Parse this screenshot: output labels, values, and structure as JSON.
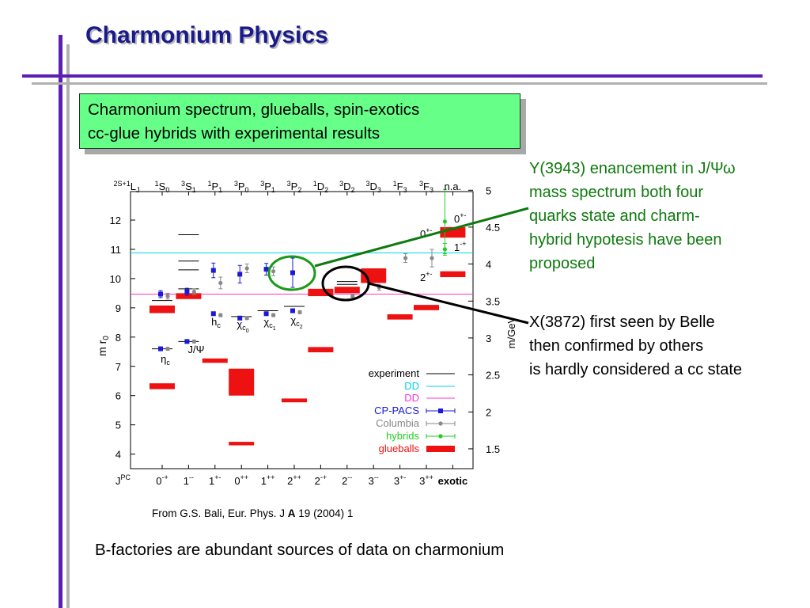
{
  "slide": {
    "title": "Charmonium Physics",
    "subtitle_line1": "Charmonium spectrum, glueballs, spin-exotics",
    "subtitle_line2": "cc-glue hybrids with experimental results",
    "source_prefix": "From G.S. Bali, Eur. Phys. J ",
    "source_bold": "A",
    "source_suffix": " 19 (2004) 1",
    "footer": "B-factories are abundant sources of data on charmonium",
    "annotation_y3943": [
      "Y(3943) enancement in J/Ψω",
      "mass spectrum both four",
      "quarks state and charm-",
      "hybrid hypotesis have been",
      "proposed"
    ],
    "annotation_x3872": [
      "X(3872) first seen by Belle",
      "then confirmed by others",
      "is hardly considered a cc state"
    ],
    "colors": {
      "title": "#1a1a8c",
      "accent_bar": "#5a1fb5",
      "box_fill": "#66ff88",
      "annotation_green": "#0e7a0e"
    }
  },
  "chart_data": {
    "type": "scatter",
    "left_axis_label": "m r0",
    "right_axis_label": "m/GeV",
    "left_ylim": [
      3.6,
      13.0
    ],
    "left_ticks": [
      4,
      5,
      6,
      7,
      8,
      9,
      10,
      11,
      12
    ],
    "right_ticks": [
      "1.5",
      "2",
      "2.5",
      "3",
      "3.5",
      "4",
      "4.5",
      "5"
    ],
    "right_tick_values_r0": [
      4.18,
      5.44,
      6.71,
      7.97,
      9.23,
      10.5,
      11.76,
      13.02
    ],
    "top_axis_prefix": "2S+1LJ",
    "top_labels": [
      "1S0",
      "3S1",
      "1P1",
      "3P0",
      "3P1",
      "3P2",
      "1D2",
      "3D2",
      "3D3",
      "1F3",
      "3F3",
      "n.a."
    ],
    "bottom_axis_prefix": "JPC",
    "categories": [
      "0-+",
      "1--",
      "1+-",
      "0++",
      "1++",
      "2++",
      "2-+",
      "2--",
      "3--",
      "3+-",
      "3++",
      "exotic"
    ],
    "horizontal_lines": {
      "cyan_DD": 10.88,
      "magenta_DD": 9.47
    },
    "experiment": [
      {
        "cat": 0,
        "y": 7.6
      },
      {
        "cat": 0,
        "y": 9.25
      },
      {
        "cat": 1,
        "y": 7.85
      },
      {
        "cat": 1,
        "y": 9.65
      },
      {
        "cat": 1,
        "y": 10.3
      },
      {
        "cat": 1,
        "y": 10.6
      },
      {
        "cat": 1,
        "y": 11.5
      },
      {
        "cat": 3,
        "y": 8.7
      },
      {
        "cat": 4,
        "y": 8.9
      },
      {
        "cat": 5,
        "y": 9.05
      },
      {
        "cat": 7,
        "y": 9.9
      },
      {
        "cat": 7,
        "y": 9.8
      }
    ],
    "cp_pacs": [
      {
        "cat": 0,
        "y": 7.6,
        "err": 0.05
      },
      {
        "cat": 0,
        "y": 9.47,
        "err": 0.12
      },
      {
        "cat": 1,
        "y": 7.85,
        "err": 0.05
      },
      {
        "cat": 1,
        "y": 9.55,
        "err": 0.12
      },
      {
        "cat": 2,
        "y": 8.8,
        "err": 0.05
      },
      {
        "cat": 2,
        "y": 10.28,
        "err": 0.25
      },
      {
        "cat": 3,
        "y": 8.65,
        "err": 0.05
      },
      {
        "cat": 3,
        "y": 10.15,
        "err": 0.3
      },
      {
        "cat": 4,
        "y": 8.8,
        "err": 0.05
      },
      {
        "cat": 4,
        "y": 10.32,
        "err": 0.2
      },
      {
        "cat": 5,
        "y": 8.9,
        "err": 0.05
      },
      {
        "cat": 5,
        "y": 10.2,
        "err": 0.5
      }
    ],
    "columbia": [
      {
        "cat": 0,
        "y": 7.6,
        "err": 0.05
      },
      {
        "cat": 0,
        "y": 9.4,
        "err": 0.1
      },
      {
        "cat": 1,
        "y": 7.85,
        "err": 0.05
      },
      {
        "cat": 1,
        "y": 9.55,
        "err": 0.1
      },
      {
        "cat": 2,
        "y": 8.75,
        "err": 0.05
      },
      {
        "cat": 2,
        "y": 9.85,
        "err": 0.2
      },
      {
        "cat": 3,
        "y": 8.65,
        "err": 0.05
      },
      {
        "cat": 3,
        "y": 10.35,
        "err": 0.15
      },
      {
        "cat": 4,
        "y": 8.75,
        "err": 0.05
      },
      {
        "cat": 4,
        "y": 10.25,
        "err": 0.15
      },
      {
        "cat": 5,
        "y": 8.85,
        "err": 0.05
      },
      {
        "cat": 7,
        "y": 9.4,
        "err": 0.05
      },
      {
        "cat": 8,
        "y": 9.7,
        "err": 0.1
      },
      {
        "cat": 9,
        "y": 10.7,
        "err": 0.15
      },
      {
        "cat": 10,
        "y": 10.7,
        "err": 0.3
      }
    ],
    "hybrids": [
      {
        "cat": 11,
        "y": 11.95,
        "err": 1.1
      },
      {
        "cat": 11,
        "y": 11.0,
        "err": 0.2
      }
    ],
    "glueballs": [
      {
        "cat": 0,
        "y0": 6.22,
        "y1": 6.42
      },
      {
        "cat": 0,
        "y0": 8.82,
        "y1": 9.08
      },
      {
        "cat": 1,
        "y0": 9.3,
        "y1": 9.5
      },
      {
        "cat": 2,
        "y0": 7.12,
        "y1": 7.27
      },
      {
        "cat": 3,
        "y0": 4.3,
        "y1": 4.42
      },
      {
        "cat": 3,
        "y0": 6.0,
        "y1": 6.92
      },
      {
        "cat": 5,
        "y0": 5.77,
        "y1": 5.9
      },
      {
        "cat": 6,
        "y0": 7.48,
        "y1": 7.66
      },
      {
        "cat": 6,
        "y0": 9.4,
        "y1": 9.65
      },
      {
        "cat": 7,
        "y0": 9.5,
        "y1": 9.72
      },
      {
        "cat": 8,
        "y0": 9.85,
        "y1": 10.35
      },
      {
        "cat": 9,
        "y0": 8.6,
        "y1": 8.78
      },
      {
        "cat": 10,
        "y0": 8.92,
        "y1": 9.1
      },
      {
        "cat": 11,
        "y0": 10.05,
        "y1": 10.25
      },
      {
        "cat": 11,
        "y0": 11.4,
        "y1": 11.76
      }
    ],
    "state_labels": [
      "ηc",
      "J/Ψ",
      "hc",
      "χc0",
      "χc1",
      "χc2"
    ],
    "exotic_labels": [
      "0+-",
      "0+-",
      "1-+",
      "2+-"
    ],
    "legend": [
      {
        "label": "experiment",
        "color": "#000000"
      },
      {
        "label": "DD",
        "color": "#00d4e8"
      },
      {
        "label": "DD",
        "color": "#ff33cc"
      },
      {
        "label": "CP-PACS",
        "color": "#1a1ad6"
      },
      {
        "label": "Columbia",
        "color": "#888888"
      },
      {
        "label": "hybrids",
        "color": "#22cc22"
      },
      {
        "label": "glueballs",
        "color": "#ee1111"
      }
    ],
    "legend_placement": "bottom-right"
  }
}
